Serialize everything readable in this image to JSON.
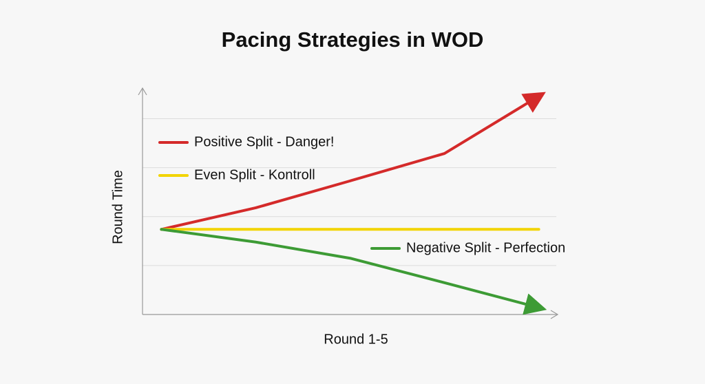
{
  "chart_data": {
    "type": "line",
    "title": "Pacing Strategies in WOD",
    "x_label": "Round 1-5",
    "y_label": "Round Time",
    "x": [
      1,
      2,
      3,
      4,
      5
    ],
    "xlim": [
      0.8,
      5.2
    ],
    "ylim": [
      0,
      4.5
    ],
    "yticks": [
      1,
      2,
      3,
      4
    ],
    "grid": true,
    "series": [
      {
        "name": "Positive Split - Danger!",
        "color": "#d42a2a",
        "values": [
          1.74,
          2.18,
          2.73,
          3.29,
          4.46
        ]
      },
      {
        "name": "Even Split - Kontroll",
        "color": "#f2d400",
        "values": [
          1.74,
          1.74,
          1.74,
          1.74,
          1.74
        ]
      },
      {
        "name": "Negative Split - Perfection",
        "color": "#3d9b35",
        "values": [
          1.74,
          1.48,
          1.15,
          0.65,
          0.14
        ]
      }
    ]
  }
}
